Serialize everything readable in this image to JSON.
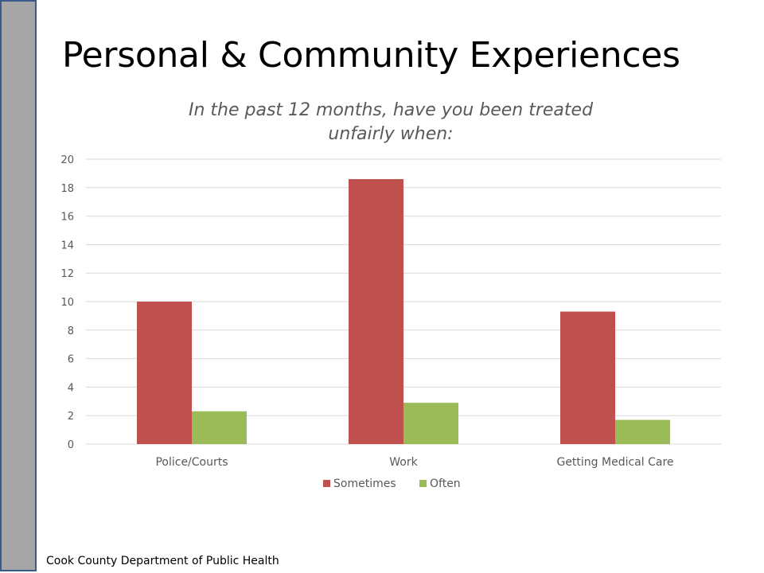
{
  "slide": {
    "title": "Personal & Community Experiences",
    "footer": "Cook County Department of Public Health"
  },
  "colors": {
    "sometimes": "#c0504d",
    "often": "#9bbb59",
    "grid": "#d9d9d9",
    "side_bar": "#a6a6a6",
    "side_bar_border": "#3a5a8c"
  },
  "chart_data": {
    "type": "bar",
    "title_lines": [
      "In the past 12 months, have you been treated",
      "unfairly when:"
    ],
    "categories": [
      "Police/Courts",
      "Work",
      "Getting Medical Care"
    ],
    "series": [
      {
        "name": "Sometimes",
        "values": [
          10.0,
          18.6,
          9.3
        ]
      },
      {
        "name": "Often",
        "values": [
          2.3,
          2.9,
          1.7
        ]
      }
    ],
    "ylim": [
      0,
      20
    ],
    "yticks": [
      0,
      2,
      4,
      6,
      8,
      10,
      12,
      14,
      16,
      18,
      20
    ],
    "grid": true,
    "legend": "bottom"
  }
}
